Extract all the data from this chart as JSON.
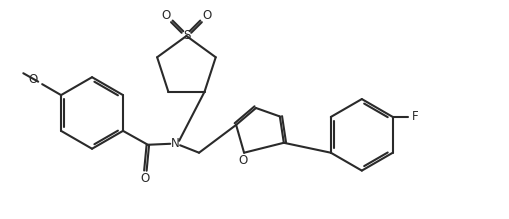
{
  "bg_color": "#ffffff",
  "line_color": "#2a2a2a",
  "line_width": 1.5,
  "fig_width": 5.1,
  "fig_height": 2.19,
  "dpi": 100,
  "xlim": [
    0,
    10.2
  ],
  "ylim": [
    0,
    4.38
  ]
}
